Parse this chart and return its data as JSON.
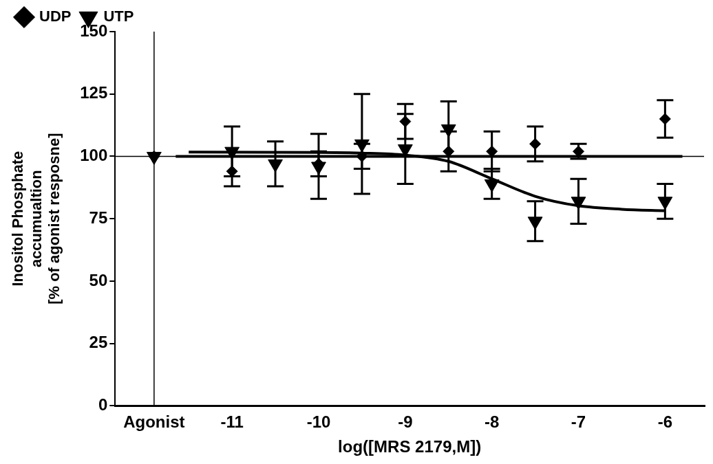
{
  "chart_data": {
    "type": "scatter",
    "xlabel": "log([MRS 2179,M])",
    "ylabel": "Inositol Phosphate\naccumualtion\n[% of agonist resposne]",
    "xlim": [
      -12.35,
      -5.55
    ],
    "xticks": [
      {
        "value": -11.9,
        "label": "Agonist"
      },
      -11,
      -10,
      -9,
      -8,
      -7,
      -6
    ],
    "ylim": [
      0,
      150
    ],
    "yticks": [
      0,
      25,
      50,
      75,
      100,
      125,
      150
    ],
    "grid": false,
    "legend": "top left",
    "ref_lines": [
      {
        "axis": "y",
        "value": 100,
        "color": "#000000"
      },
      {
        "axis": "x",
        "value": -11.9,
        "color": "#000000"
      }
    ],
    "series": [
      {
        "name": "UDP",
        "type": "scatter",
        "marker": "diamond",
        "color": "#000000",
        "x": [
          -11.9,
          -11,
          -10.5,
          -10,
          -9.5,
          -9,
          -8.5,
          -8,
          -7.5,
          -7,
          -6
        ],
        "values": [
          100,
          94,
          null,
          97,
          100,
          114,
          102,
          102,
          105,
          102,
          115
        ],
        "errors": [
          null,
          6,
          null,
          5,
          5,
          7,
          8,
          8,
          7,
          3,
          7.5
        ]
      },
      {
        "name": "UTP",
        "type": "scatter",
        "marker": "triangle",
        "color": "#000000",
        "x": [
          -11.9,
          -11,
          -10.5,
          -10,
          -9.5,
          -9,
          -8.5,
          -8,
          -7.5,
          -7,
          -6
        ],
        "values": [
          100,
          102,
          97,
          96,
          105,
          103,
          111,
          89,
          74,
          82,
          82
        ],
        "errors": [
          null,
          10,
          9,
          13,
          20,
          14,
          11,
          6,
          8,
          9,
          7
        ]
      },
      {
        "type": "line",
        "marker": "none",
        "color": "#000000",
        "x": [
          -11.65,
          -5.8
        ],
        "values": [
          100,
          100
        ]
      },
      {
        "type": "line",
        "marker": "none",
        "color": "#000000",
        "x": [
          -11.5,
          -10,
          -9.5,
          -9,
          -8.5,
          -8,
          -7.5,
          -7,
          -6.5,
          -6
        ],
        "values": [
          101.7,
          101.6,
          101.3,
          100.5,
          98,
          91,
          84,
          80.2,
          78.8,
          78.2
        ]
      }
    ]
  }
}
